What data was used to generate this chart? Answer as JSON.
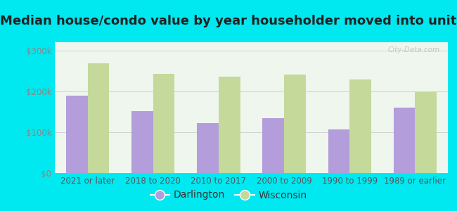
{
  "title": "Median house/condo value by year householder moved into unit",
  "categories": [
    "2021 or later",
    "2018 to 2020",
    "2010 to 2017",
    "2000 to 2009",
    "1990 to 1999",
    "1989 or earlier"
  ],
  "darlington": [
    190000,
    152000,
    122000,
    135000,
    107000,
    160000
  ],
  "wisconsin": [
    268000,
    242000,
    235000,
    240000,
    228000,
    197000
  ],
  "darlington_color": "#b39ddb",
  "wisconsin_color": "#c5d99a",
  "background_outer": "#00e8f0",
  "background_inner_top": "#eaf5ea",
  "background_inner_bottom": "#f5fff5",
  "ylim": [
    0,
    320000
  ],
  "yticks": [
    0,
    100000,
    200000,
    300000
  ],
  "ytick_labels": [
    "$0",
    "$100k",
    "$200k",
    "$300k"
  ],
  "legend_darlington": "Darlington",
  "legend_wisconsin": "Wisconsin",
  "watermark": "City-Data.com",
  "title_fontsize": 13,
  "tick_fontsize": 8.5,
  "legend_fontsize": 10
}
